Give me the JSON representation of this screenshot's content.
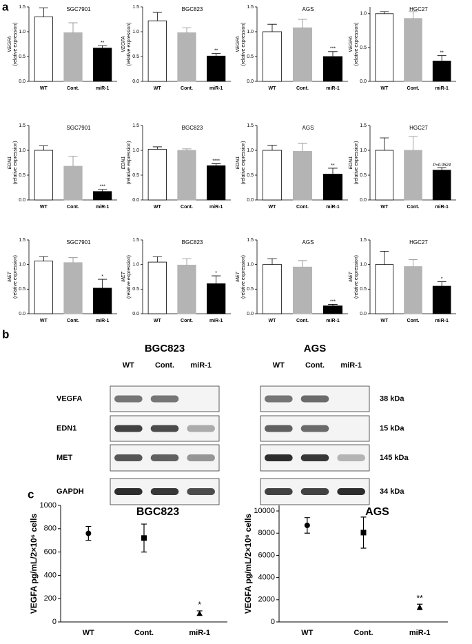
{
  "panel_labels": [
    "a",
    "b",
    "c"
  ],
  "chart_data": [
    {
      "type": "bar",
      "title": "SGC7901",
      "ylabel": "VEGFA",
      "ylabel_sub": "(relative expression)",
      "categories": [
        "WT",
        "Cont.",
        "miR-1"
      ],
      "values": [
        1.3,
        0.98,
        0.67
      ],
      "errors": [
        0.18,
        0.2,
        0.05
      ],
      "value_annotations": [
        null,
        null,
        "**"
      ],
      "colors": [
        "#ffffff",
        "#b4b4b4",
        "#000000"
      ],
      "ylim": [
        0,
        1.5
      ],
      "yticks": [
        {
          "value": 0,
          "label": "0.0"
        },
        0.5,
        {
          "value": 1,
          "label": "1.0"
        },
        1.5
      ]
    },
    {
      "type": "bar",
      "title": "BGC823",
      "ylabel": "VEGFA",
      "ylabel_sub": "(relative expression)",
      "categories": [
        "WT",
        "Cont.",
        "miR-1"
      ],
      "values": [
        1.22,
        0.98,
        0.51
      ],
      "errors": [
        0.17,
        0.1,
        0.05
      ],
      "value_annotations": [
        null,
        null,
        "**"
      ],
      "colors": [
        "#ffffff",
        "#b4b4b4",
        "#000000"
      ],
      "ylim": [
        0,
        1.5
      ],
      "yticks": [
        {
          "value": 0,
          "label": "0.0"
        },
        0.5,
        {
          "value": 1,
          "label": "1.0"
        },
        1.5
      ]
    },
    {
      "type": "bar",
      "title": "AGS",
      "ylabel": "VEGFA",
      "ylabel_sub": "(relative expression)",
      "categories": [
        "WT",
        "Cont.",
        "miR-1"
      ],
      "values": [
        1.0,
        1.08,
        0.5
      ],
      "errors": [
        0.15,
        0.17,
        0.1
      ],
      "value_annotations": [
        null,
        null,
        "***"
      ],
      "colors": [
        "#ffffff",
        "#b4b4b4",
        "#000000"
      ],
      "ylim": [
        0,
        1.5
      ],
      "yticks": [
        {
          "value": 0,
          "label": "0.0"
        },
        0.5,
        {
          "value": 1,
          "label": "1.0"
        },
        1.5
      ]
    },
    {
      "type": "bar",
      "title": "HGC27",
      "ylabel": "VEGFA",
      "ylabel_sub": "(relative expression)",
      "categories": [
        "WT",
        "Cont.",
        "miR-1"
      ],
      "values": [
        1.0,
        0.93,
        0.3
      ],
      "errors": [
        0.03,
        0.1,
        0.08
      ],
      "value_annotations": [
        null,
        null,
        "**"
      ],
      "colors": [
        "#ffffff",
        "#b4b4b4",
        "#000000"
      ],
      "ylim": [
        0,
        1.1
      ],
      "yticks": [
        {
          "value": 0,
          "label": "0.0"
        },
        0.5,
        {
          "value": 1,
          "label": "1.0"
        }
      ]
    },
    {
      "type": "bar",
      "title": "SGC7901",
      "ylabel": "EDN1",
      "ylabel_sub": "(relative expression)",
      "categories": [
        "WT",
        "Cont.",
        "miR-1"
      ],
      "values": [
        1.0,
        0.68,
        0.17
      ],
      "errors": [
        0.09,
        0.2,
        0.04
      ],
      "value_annotations": [
        null,
        null,
        "***"
      ],
      "colors": [
        "#ffffff",
        "#b4b4b4",
        "#000000"
      ],
      "ylim": [
        0,
        1.5
      ],
      "yticks": [
        {
          "value": 0,
          "label": "0.0"
        },
        0.5,
        {
          "value": 1,
          "label": "1.0"
        },
        1.5
      ]
    },
    {
      "type": "bar",
      "title": "BGC823",
      "ylabel": "EDN1",
      "ylabel_sub": "(relative expression)",
      "categories": [
        "WT",
        "Cont.",
        "miR-1"
      ],
      "values": [
        1.02,
        1.0,
        0.69
      ],
      "errors": [
        0.05,
        0.03,
        0.04
      ],
      "value_annotations": [
        null,
        null,
        "****"
      ],
      "colors": [
        "#ffffff",
        "#b4b4b4",
        "#000000"
      ],
      "ylim": [
        0,
        1.5
      ],
      "yticks": [
        {
          "value": 0,
          "label": "0.0"
        },
        0.5,
        {
          "value": 1,
          "label": "1.0"
        },
        1.5
      ]
    },
    {
      "type": "bar",
      "title": "AGS",
      "ylabel": "EDN1",
      "ylabel_sub": "(relative expression)",
      "categories": [
        "WT",
        "Cont.",
        "miR-1"
      ],
      "values": [
        1.0,
        0.98,
        0.52
      ],
      "errors": [
        0.1,
        0.16,
        0.12
      ],
      "value_annotations": [
        null,
        null,
        "**"
      ],
      "colors": [
        "#ffffff",
        "#b4b4b4",
        "#000000"
      ],
      "ylim": [
        0,
        1.5
      ],
      "yticks": [
        {
          "value": 0,
          "label": "0.0"
        },
        0.5,
        {
          "value": 1,
          "label": "1.0"
        },
        1.5
      ]
    },
    {
      "type": "bar",
      "title": "HGC27",
      "ylabel": "EDN1",
      "ylabel_sub": "(relative expression)",
      "categories": [
        "WT",
        "Cont.",
        "miR-1"
      ],
      "values": [
        1.0,
        1.0,
        0.6
      ],
      "errors": [
        0.25,
        0.28,
        0.05
      ],
      "value_annotations": [
        null,
        null,
        "P=0.0524"
      ],
      "colors": [
        "#ffffff",
        "#b4b4b4",
        "#000000"
      ],
      "ylim": [
        0,
        1.5
      ],
      "yticks": [
        {
          "value": 0,
          "label": "0.0"
        },
        0.5,
        {
          "value": 1,
          "label": "1.0"
        },
        1.5
      ]
    },
    {
      "type": "bar",
      "title": "SGC7901",
      "ylabel": "MET",
      "ylabel_sub": "(relative expression)",
      "categories": [
        "WT",
        "Cont.",
        "miR-1"
      ],
      "values": [
        1.07,
        1.04,
        0.52
      ],
      "errors": [
        0.09,
        0.1,
        0.18
      ],
      "value_annotations": [
        null,
        null,
        "*"
      ],
      "colors": [
        "#ffffff",
        "#b4b4b4",
        "#000000"
      ],
      "ylim": [
        0,
        1.5
      ],
      "yticks": [
        {
          "value": 0,
          "label": "0.0"
        },
        0.5,
        {
          "value": 1,
          "label": "1.0"
        },
        1.5
      ]
    },
    {
      "type": "bar",
      "title": "BGC823",
      "ylabel": "MET",
      "ylabel_sub": "(relative expression)",
      "categories": [
        "WT",
        "Cont.",
        "miR-1"
      ],
      "values": [
        1.05,
        0.99,
        0.61
      ],
      "errors": [
        0.11,
        0.13,
        0.16
      ],
      "value_annotations": [
        null,
        null,
        "*"
      ],
      "colors": [
        "#ffffff",
        "#b4b4b4",
        "#000000"
      ],
      "ylim": [
        0,
        1.5
      ],
      "yticks": [
        {
          "value": 0,
          "label": "0.0"
        },
        0.5,
        {
          "value": 1,
          "label": "1.0"
        },
        1.5
      ]
    },
    {
      "type": "bar",
      "title": "AGS",
      "ylabel": "MET",
      "ylabel_sub": "(relative expression)",
      "categories": [
        "WT",
        "Cont.",
        "miR-1"
      ],
      "values": [
        1.0,
        0.95,
        0.16
      ],
      "errors": [
        0.12,
        0.13,
        0.03
      ],
      "value_annotations": [
        null,
        null,
        "***"
      ],
      "colors": [
        "#ffffff",
        "#b4b4b4",
        "#000000"
      ],
      "ylim": [
        0,
        1.5
      ],
      "yticks": [
        {
          "value": 0,
          "label": "0.0"
        },
        0.5,
        {
          "value": 1,
          "label": "1.0"
        },
        1.5
      ]
    },
    {
      "type": "bar",
      "title": "HGC27",
      "ylabel": "MET",
      "ylabel_sub": "(relative expression)",
      "categories": [
        "WT",
        "Cont.",
        "miR-1"
      ],
      "values": [
        1.0,
        0.96,
        0.56
      ],
      "errors": [
        0.27,
        0.14,
        0.09
      ],
      "value_annotations": [
        null,
        null,
        "*"
      ],
      "colors": [
        "#ffffff",
        "#b4b4b4",
        "#000000"
      ],
      "ylim": [
        0,
        1.5
      ],
      "yticks": [
        {
          "value": 0,
          "label": "0.0"
        },
        0.5,
        {
          "value": 1,
          "label": "1.0"
        },
        1.5
      ]
    },
    {
      "type": "scatter",
      "title": "BGC823",
      "ylabel": "VEGFA pg/mL/2×10⁶ cells",
      "categories": [
        "WT",
        "Cont.",
        "miR-1"
      ],
      "values": [
        760,
        720,
        75
      ],
      "errors": [
        60,
        120,
        20
      ],
      "markers": [
        "circle",
        "square",
        "triangle"
      ],
      "color": "#000000",
      "value_annotations": [
        null,
        null,
        "*"
      ],
      "ylim": [
        0,
        1000
      ],
      "yticks": [
        0,
        200,
        400,
        600,
        800,
        1000
      ]
    },
    {
      "type": "scatter",
      "title": "AGS",
      "ylabel": "VEGFA pg/mL/2×10⁶ cells",
      "categories": [
        "WT",
        "Cont.",
        "miR-1"
      ],
      "values": [
        8700,
        8050,
        1350
      ],
      "errors": [
        700,
        1400,
        250
      ],
      "markers": [
        "circle",
        "square",
        "triangle"
      ],
      "color": "#000000",
      "value_annotations": [
        null,
        null,
        "**"
      ],
      "ylim": [
        0,
        10500
      ],
      "yticks": [
        0,
        2000,
        4000,
        6000,
        8000,
        10000
      ]
    }
  ],
  "blot": {
    "panels": [
      {
        "title": "BGC823",
        "lanes": [
          "WT",
          "Cont.",
          "miR-1"
        ]
      },
      {
        "title": "AGS",
        "lanes": [
          "WT",
          "Cont.",
          "miR-1"
        ]
      }
    ],
    "rows": [
      "VEGFA",
      "EDN1",
      "MET",
      "GAPDH"
    ],
    "sizes": [
      "38 kDa",
      "15 kDa",
      "145 kDa",
      "34 kDa"
    ]
  }
}
